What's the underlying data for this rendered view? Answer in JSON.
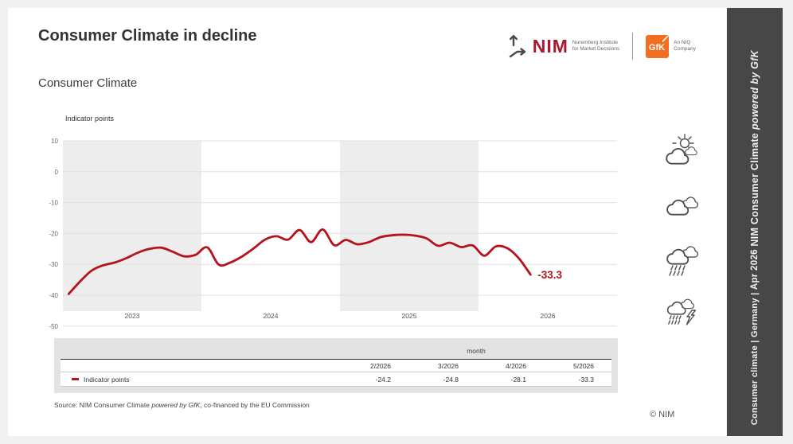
{
  "page": {
    "title": "Consumer Climate in decline",
    "subtitle": "Consumer Climate",
    "copyright": "© NIM"
  },
  "header_logos": {
    "nim_wordmark": "NIM",
    "nim_tagline": [
      "Nuremberg Institute",
      "for Market Decisions"
    ],
    "gfk_wordmark": "GfK",
    "gfk_tagline": [
      "An NIQ",
      "Company"
    ],
    "nim_red": "#a6192e",
    "gfk_orange": "#f26f21"
  },
  "sidebar": {
    "segment_regular": "Consumer climate | Germany | ",
    "segment_date": "Apr 2026 ",
    "segment_brand": "NIM Consumer Climate ",
    "segment_brand_italic": "powered by GfK"
  },
  "weather_icons": [
    "sun-behind-cloud",
    "clouds",
    "rain-cloud",
    "storm-rain-cloud"
  ],
  "chart_data": {
    "type": "line",
    "title": "Consumer Climate",
    "ylabel": "Indicator points",
    "ylim": [
      -50,
      10
    ],
    "yticks": [
      10,
      0,
      -10,
      -20,
      -30,
      -40,
      -50
    ],
    "x_year_labels": [
      "2023",
      "2024",
      "2025",
      "2026"
    ],
    "shaded_years": [
      "2023",
      "2025"
    ],
    "grid": "horizontal",
    "end_label": "-33.3",
    "months": [
      "1/2023",
      "2/2023",
      "3/2023",
      "4/2023",
      "5/2023",
      "6/2023",
      "7/2023",
      "8/2023",
      "9/2023",
      "10/2023",
      "11/2023",
      "12/2023",
      "1/2024",
      "2/2024",
      "3/2024",
      "4/2024",
      "5/2024",
      "6/2024",
      "7/2024",
      "8/2024",
      "9/2024",
      "10/2024",
      "11/2024",
      "12/2024",
      "1/2025",
      "2/2025",
      "3/2025",
      "4/2025",
      "5/2025",
      "6/2025",
      "7/2025",
      "8/2025",
      "9/2025",
      "10/2025",
      "11/2025",
      "12/2025",
      "1/2026",
      "2/2026",
      "3/2026",
      "4/2026",
      "5/2026"
    ],
    "series": [
      {
        "name": "Indicator points",
        "color": "#b5121b",
        "values": [
          -39.6,
          -35.5,
          -32.0,
          -30.3,
          -29.4,
          -28.0,
          -26.2,
          -25.0,
          -24.6,
          -25.9,
          -27.4,
          -26.9,
          -24.5,
          -30.1,
          -29.4,
          -27.5,
          -24.9,
          -22.0,
          -20.9,
          -22.0,
          -18.9,
          -22.8,
          -18.7,
          -23.8,
          -22.1,
          -23.5,
          -22.8,
          -21.2,
          -20.6,
          -20.4,
          -20.7,
          -21.6,
          -24.0,
          -23.0,
          -24.4,
          -23.9,
          -27.2,
          -24.2,
          -24.8,
          -28.1,
          -33.3
        ]
      }
    ]
  },
  "table": {
    "group_header": "month",
    "columns": [
      "2/2026",
      "3/2026",
      "4/2026",
      "5/2026"
    ],
    "rows": [
      {
        "label": "Indicator points",
        "marker_color": "#b5121b",
        "values": [
          "-24.2",
          "-24.8",
          "-28.1",
          "-33.3"
        ]
      }
    ]
  },
  "source_note": {
    "prefix": "Source: NIM Consumer Climate ",
    "italic": "powered by GfK",
    "suffix": ", co-financed by the EU Commission"
  }
}
